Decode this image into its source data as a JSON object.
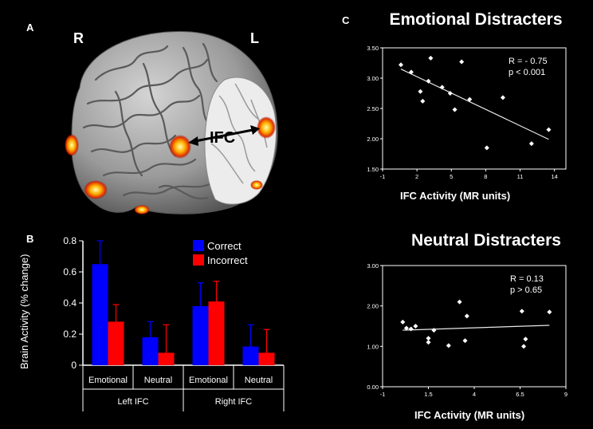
{
  "panels": {
    "a": {
      "label": "A",
      "hemi_right": "R",
      "hemi_left": "L",
      "ifc_label": "IFC"
    },
    "b": {
      "label": "B"
    },
    "c": {
      "label": "C"
    }
  },
  "chart_data": [
    {
      "type": "bar",
      "title": "",
      "ylabel": "Brain Activity (% change)",
      "ylim": [
        0,
        0.8
      ],
      "yticks": [
        "0",
        "0.2",
        "0.4",
        "0.6",
        "0.8"
      ],
      "categories": [
        "Emotional",
        "Neutral",
        "Emotional",
        "Neutral"
      ],
      "groups": [
        {
          "label": "Left IFC",
          "span": [
            0,
            1
          ]
        },
        {
          "label": "Right IFC",
          "span": [
            2,
            3
          ]
        }
      ],
      "series": [
        {
          "name": "Correct",
          "color": "#0000ff",
          "values": [
            0.65,
            0.18,
            0.38,
            0.12
          ],
          "errors": [
            0.15,
            0.1,
            0.15,
            0.14
          ]
        },
        {
          "name": "Incorrect",
          "color": "#ff0000",
          "values": [
            0.28,
            0.08,
            0.41,
            0.08
          ],
          "errors": [
            0.11,
            0.18,
            0.13,
            0.15
          ]
        }
      ],
      "legend_position": "top-right"
    },
    {
      "type": "scatter",
      "title": "Emotional Distracters",
      "xlabel": "IFC Activity (MR units)",
      "xlim": [
        -1,
        15
      ],
      "ylim": [
        1.5,
        3.5
      ],
      "xticks": [
        "-1",
        "2",
        "5",
        "8",
        "11",
        "14"
      ],
      "yticks": [
        "1.50",
        "2.00",
        "2.50",
        "3.00",
        "3.50"
      ],
      "annotation": [
        "R = - 0.75",
        "p < 0.001"
      ],
      "points": [
        [
          0.6,
          3.22
        ],
        [
          1.5,
          3.1
        ],
        [
          2.3,
          2.78
        ],
        [
          2.5,
          2.62
        ],
        [
          3.0,
          2.95
        ],
        [
          3.2,
          3.33
        ],
        [
          4.2,
          2.85
        ],
        [
          4.9,
          2.75
        ],
        [
          5.3,
          2.48
        ],
        [
          5.9,
          3.27
        ],
        [
          6.6,
          2.65
        ],
        [
          8.1,
          1.85
        ],
        [
          9.5,
          2.68
        ],
        [
          12.0,
          1.92
        ],
        [
          13.5,
          2.15
        ]
      ],
      "fit": [
        [
          0.6,
          3.15
        ],
        [
          13.5,
          1.99
        ]
      ]
    },
    {
      "type": "scatter",
      "title": "Neutral Distracters",
      "xlabel": "IFC Activity (MR units)",
      "xlim": [
        -1,
        9
      ],
      "ylim": [
        0,
        3
      ],
      "xticks": [
        "-1",
        "1.5",
        "4",
        "6.5",
        "9"
      ],
      "yticks": [
        "0.00",
        "1.00",
        "2.00",
        "3.00"
      ],
      "annotation": [
        "R = 0.13",
        "p > 0.65"
      ],
      "points": [
        [
          0.1,
          1.6
        ],
        [
          0.3,
          1.45
        ],
        [
          0.55,
          1.43
        ],
        [
          0.8,
          1.5
        ],
        [
          1.5,
          1.2
        ],
        [
          1.5,
          1.1
        ],
        [
          1.8,
          1.4
        ],
        [
          2.6,
          1.02
        ],
        [
          3.2,
          2.1
        ],
        [
          3.5,
          1.14
        ],
        [
          3.6,
          1.75
        ],
        [
          6.6,
          1.87
        ],
        [
          6.7,
          1.0
        ],
        [
          6.8,
          1.18
        ],
        [
          8.1,
          1.85
        ]
      ],
      "fit": [
        [
          0.1,
          1.4
        ],
        [
          8.1,
          1.52
        ]
      ]
    }
  ]
}
